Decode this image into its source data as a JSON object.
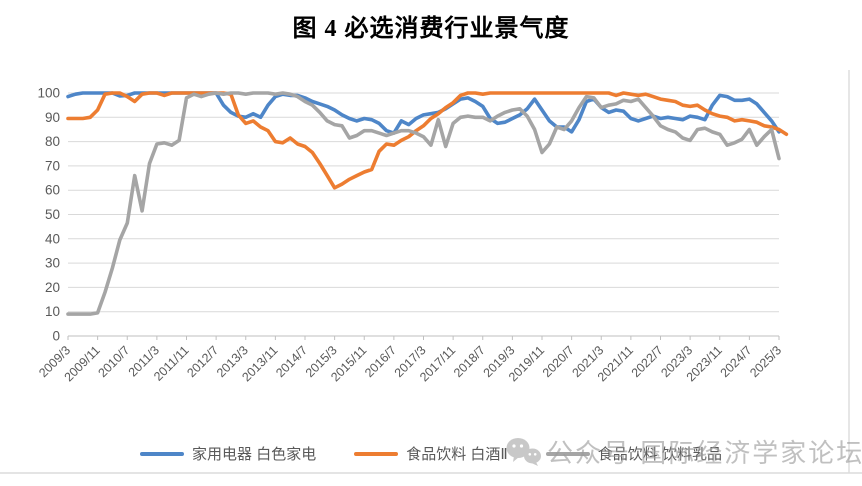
{
  "title": "图 4 必选消费行业景气度",
  "watermark": {
    "text": "公众号 国际经济学家论坛",
    "icon": "wechat-icon",
    "color": "#9b9b9b"
  },
  "axis_colors": {
    "gridline": "#d9d9d9",
    "axis_line": "#bfbfbf",
    "tick_label": "#595959"
  },
  "border_lines": {
    "right_border_x": 849,
    "bottom_border_y": 473,
    "color": "#dcdcdc"
  },
  "chart_data": {
    "type": "line",
    "title": "图 4 必选消费行业景气度",
    "xlabel": "",
    "ylabel": "",
    "ylim": [
      0,
      100
    ],
    "ytick_step": 10,
    "y_tick_labels": [
      "0",
      "10",
      "20",
      "30",
      "40",
      "50",
      "60",
      "70",
      "80",
      "90",
      "100"
    ],
    "grid": true,
    "legend_position": "bottom",
    "x_note": "monthly prosperity index sampled every 2 months from 2009/3 to 2025/3; axis labels every 8 months",
    "categories": [
      "2009/3",
      "2009/11",
      "2010/7",
      "2011/3",
      "2011/11",
      "2012/7",
      "2013/3",
      "2013/11",
      "2014/7",
      "2015/3",
      "2015/11",
      "2016/7",
      "2017/3",
      "2017/11",
      "2018/7",
      "2019/3",
      "2019/11",
      "2020/7",
      "2021/3",
      "2021/11",
      "2022/7",
      "2023/3",
      "2023/11",
      "2024/7",
      "2025/3"
    ],
    "points_per_label_interval": 4,
    "series": [
      {
        "name": "家用电器 白色家电",
        "color": "#4e86c8",
        "values": [
          98.5,
          99.5,
          100,
          100,
          100,
          100,
          100,
          98.8,
          99,
          100,
          100,
          100,
          100,
          100,
          100,
          100,
          100,
          100,
          100,
          100,
          100,
          95,
          92,
          90.5,
          90,
          91.5,
          90,
          95,
          98.5,
          99.5,
          99,
          99,
          98,
          96.5,
          95.5,
          94.5,
          93,
          91,
          89.5,
          88.5,
          89.5,
          89,
          87.5,
          84.5,
          83.5,
          88.5,
          87,
          89.5,
          91,
          91.5,
          92,
          93.5,
          95.5,
          97.5,
          98,
          96.5,
          94.5,
          89.5,
          87.5,
          88,
          89.5,
          91,
          93.5,
          97.5,
          93,
          88.5,
          86,
          86,
          84,
          89,
          96.5,
          97.5,
          94,
          92,
          93,
          92.5,
          89.5,
          88.5,
          89.5,
          90.5,
          89.5,
          90,
          89.5,
          89,
          90.5,
          90,
          89,
          95,
          99,
          98.5,
          97,
          97,
          97.5,
          95.5,
          92,
          88.5,
          84
        ]
      },
      {
        "name": "食品饮料 白酒Ⅱ",
        "color": "#ed7d31",
        "values": [
          89.5,
          89.5,
          89.5,
          90,
          93,
          99.5,
          100,
          100,
          98.5,
          96.5,
          99.5,
          100,
          100,
          99,
          100,
          100,
          100,
          100,
          100,
          100,
          100,
          100,
          99.5,
          91,
          87.5,
          88.5,
          86,
          84.5,
          80,
          79.5,
          81.5,
          79,
          78,
          75.5,
          71,
          66,
          61,
          62.5,
          64.5,
          66,
          67.5,
          68.5,
          76,
          79,
          78.5,
          80.5,
          82,
          84.5,
          86.5,
          89.5,
          91.5,
          94,
          96,
          99,
          100,
          100,
          99.5,
          100,
          100,
          100,
          100,
          100,
          100,
          100,
          100,
          100,
          100,
          100,
          100,
          100,
          100,
          100,
          100,
          100,
          99,
          100,
          99.5,
          99,
          99.5,
          98.5,
          97.5,
          97,
          96.5,
          95,
          94.5,
          95,
          93,
          91.5,
          90.5,
          90,
          88.5,
          89,
          88.5,
          88,
          86.5,
          86,
          85,
          83
        ]
      },
      {
        "name": "食品饮料 饮料乳品",
        "color": "#a5a5a5",
        "values": [
          9,
          9,
          9,
          9,
          9.5,
          18,
          28,
          39.5,
          46.5,
          66,
          51.5,
          71,
          79,
          79.5,
          78.5,
          80.5,
          98,
          99.5,
          98.5,
          99.5,
          100,
          99.5,
          100,
          100,
          99.5,
          100,
          100,
          100,
          99.5,
          100,
          99.5,
          98.5,
          96.5,
          95,
          92,
          88.5,
          87,
          86.5,
          81.5,
          82.5,
          84.5,
          84.5,
          83.5,
          82.5,
          83.5,
          84.5,
          84.5,
          83.5,
          82,
          78.5,
          89,
          78,
          87.5,
          90,
          90.5,
          90,
          90,
          88.5,
          90.5,
          92,
          93,
          93.5,
          90.5,
          85,
          75.5,
          79,
          86,
          85,
          88.5,
          94,
          98.5,
          98,
          94,
          95,
          95.5,
          97,
          96.5,
          97.5,
          94,
          90.5,
          86.5,
          85,
          84,
          81.5,
          80.5,
          85,
          85.5,
          84,
          83,
          78.5,
          79.5,
          81,
          85,
          78.5,
          82,
          85,
          73
        ]
      }
    ]
  }
}
